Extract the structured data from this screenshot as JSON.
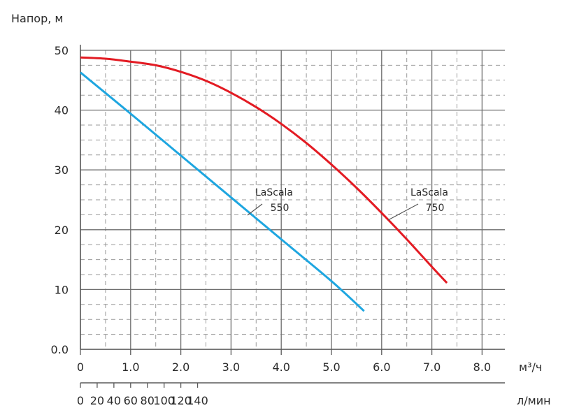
{
  "chart_data": {
    "type": "line",
    "ylabel": "Напор, м",
    "x_unit": "м³/ч",
    "x2_unit": "л/мин",
    "x_ticks": [
      "0",
      "1.0",
      "2.0",
      "3.0",
      "4.0",
      "5.0",
      "6.0",
      "7.0",
      "8.0"
    ],
    "x2_ticks": [
      "0",
      "20",
      "40",
      "60",
      "80",
      "100",
      "120",
      "140"
    ],
    "y_ticks": [
      "0.0",
      "10",
      "20",
      "30",
      "40",
      "50"
    ],
    "xlim": [
      0,
      8.4
    ],
    "x2lim": [
      0,
      140
    ],
    "ylim": [
      0,
      50
    ],
    "grid": true,
    "series": [
      {
        "name": "LaScala 750",
        "color": "#e31b23",
        "x": [
          0,
          0.5,
          1.0,
          1.5,
          2.0,
          2.5,
          3.0,
          3.5,
          4.0,
          4.5,
          5.0,
          5.5,
          6.0,
          6.5,
          7.0,
          7.3
        ],
        "y": [
          48.8,
          48.6,
          48.1,
          47.5,
          46.4,
          44.9,
          42.9,
          40.5,
          37.7,
          34.5,
          30.9,
          27.0,
          22.8,
          18.4,
          13.8,
          11.1
        ]
      },
      {
        "name": "LaScala 550",
        "color": "#1ea6e0",
        "x": [
          0,
          1.0,
          2.0,
          3.0,
          4.0,
          5.0,
          5.65
        ],
        "y": [
          46.3,
          39.4,
          32.4,
          25.4,
          18.4,
          11.4,
          6.4
        ]
      }
    ],
    "annotations": [
      {
        "line1": "LaScala",
        "line2": "550",
        "series": 1
      },
      {
        "line1": "LaScala",
        "line2": "750",
        "series": 0
      }
    ]
  }
}
